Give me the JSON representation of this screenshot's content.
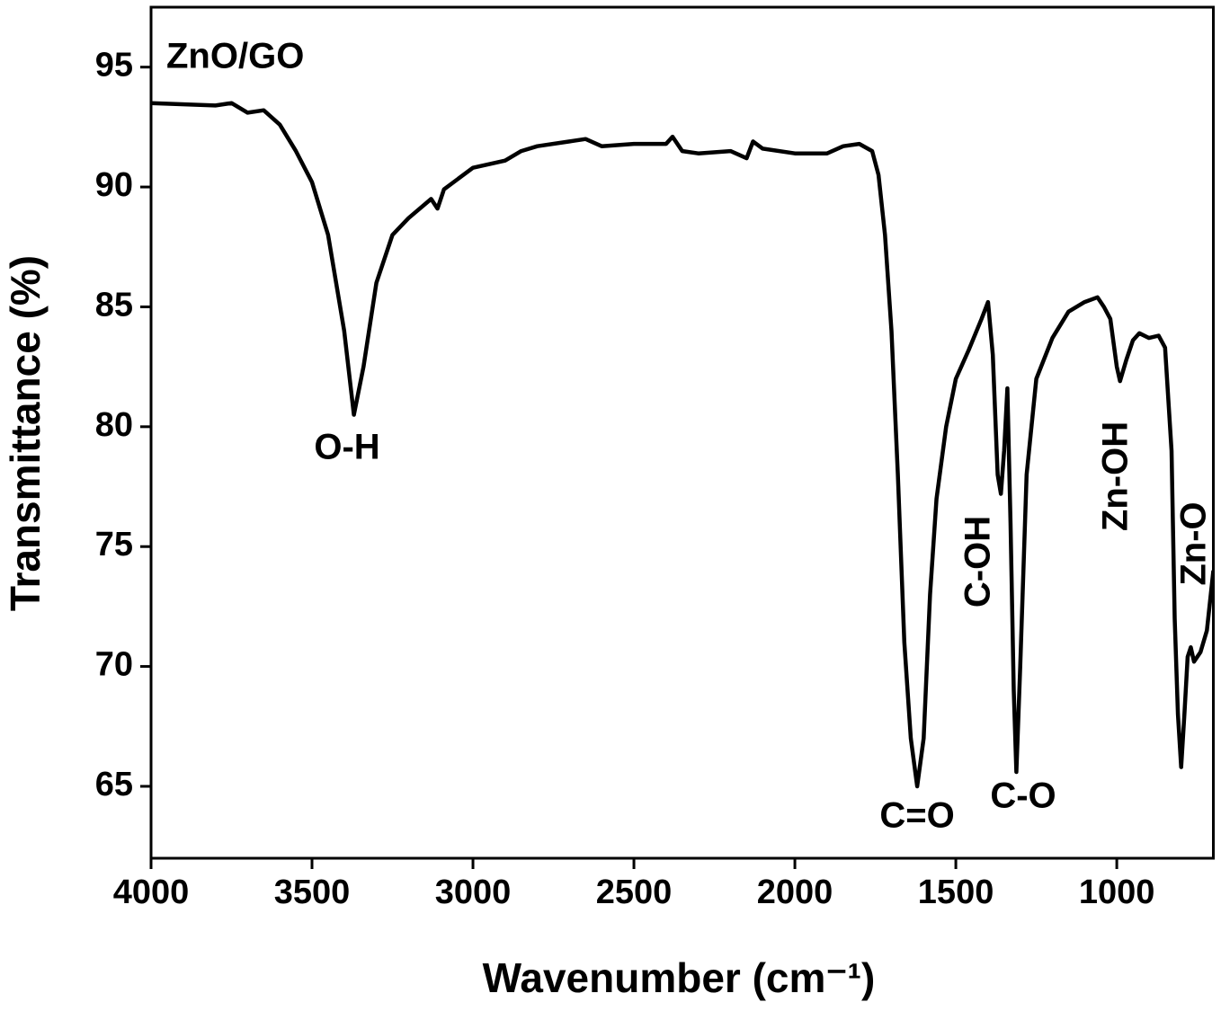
{
  "chart_data": {
    "type": "line",
    "x_label": "Wavenumber (cm⁻¹)",
    "y_label": "Transmittance (%)",
    "annotations": [
      "ZnO/GO",
      "O-H",
      "C=O",
      "C-OH",
      "C-O",
      "Zn-OH",
      "Zn-O"
    ],
    "xlim": [
      4000,
      700
    ],
    "ylim": [
      62,
      97.5
    ],
    "xticks": [
      4000,
      3500,
      3000,
      2500,
      2000,
      1500,
      1000
    ],
    "yticks": [
      65,
      70,
      75,
      80,
      85,
      90,
      95
    ],
    "series": [
      {
        "name": "ZnO/GO",
        "color": "#000000",
        "x": [
          4000,
          3800,
          3750,
          3700,
          3650,
          3600,
          3550,
          3500,
          3450,
          3400,
          3370,
          3340,
          3300,
          3250,
          3200,
          3130,
          3110,
          3090,
          3000,
          2900,
          2850,
          2800,
          2700,
          2650,
          2600,
          2500,
          2400,
          2380,
          2350,
          2300,
          2200,
          2150,
          2130,
          2100,
          2000,
          1900,
          1850,
          1800,
          1760,
          1740,
          1720,
          1700,
          1680,
          1660,
          1640,
          1620,
          1600,
          1580,
          1560,
          1530,
          1500,
          1460,
          1420,
          1400,
          1385,
          1370,
          1360,
          1350,
          1340,
          1330,
          1320,
          1312,
          1300,
          1280,
          1250,
          1200,
          1150,
          1100,
          1060,
          1040,
          1020,
          1000,
          990,
          970,
          950,
          930,
          900,
          870,
          850,
          830,
          820,
          810,
          800,
          790,
          780,
          770,
          760,
          740,
          720,
          700
        ],
        "values": [
          93.5,
          93.4,
          93.5,
          93.1,
          93.2,
          92.6,
          91.5,
          90.2,
          88.0,
          84,
          80.5,
          82.5,
          86,
          88,
          88.7,
          89.5,
          89.1,
          89.9,
          90.8,
          91.1,
          91.5,
          91.7,
          91.9,
          92.0,
          91.7,
          91.8,
          91.8,
          92.1,
          91.5,
          91.4,
          91.5,
          91.2,
          91.9,
          91.6,
          91.4,
          91.4,
          91.7,
          91.8,
          91.5,
          90.5,
          88,
          84,
          78,
          71,
          67,
          65,
          67,
          73,
          77,
          80,
          82,
          83.2,
          84.5,
          85.2,
          83,
          78,
          77.2,
          79,
          81.6,
          76,
          69,
          65.6,
          70,
          78,
          82,
          83.7,
          84.8,
          85.2,
          85.4,
          85,
          84.5,
          82.5,
          81.9,
          82.8,
          83.6,
          83.9,
          83.7,
          83.8,
          83.3,
          79,
          72,
          68,
          65.8,
          68,
          70.4,
          70.8,
          70.2,
          70.6,
          71.5,
          74
        ]
      }
    ]
  }
}
